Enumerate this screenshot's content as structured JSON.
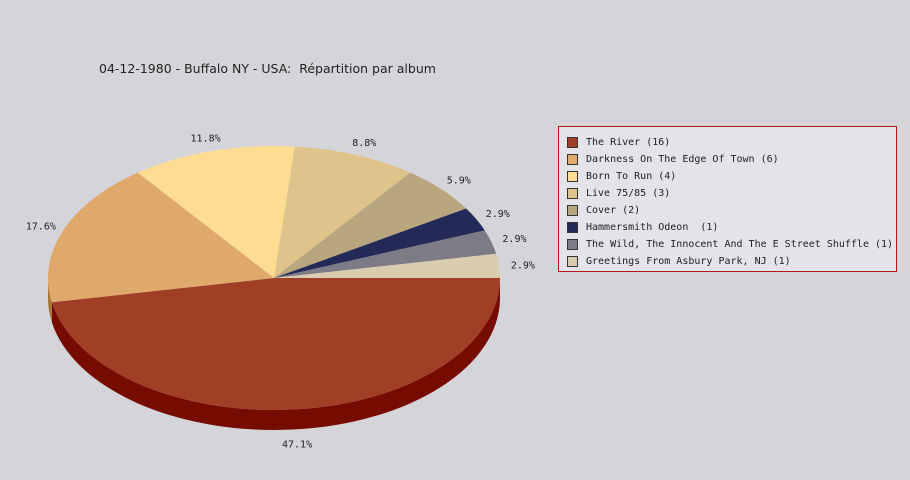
{
  "chart_data": {
    "type": "pie",
    "title": "04-12-1980 - Buffalo NY - USA:  Répartition par album",
    "slices": [
      {
        "label": "The River (16)",
        "value": 16,
        "percent_label": "47.1%",
        "color": "#a03e26",
        "shade": "#760c00"
      },
      {
        "label": "Darkness On The Edge Of Town (6)",
        "value": 6,
        "percent_label": "17.6%",
        "color": "#e0a96c",
        "shade": "#a87432"
      },
      {
        "label": "Born To Run (4)",
        "value": 4,
        "percent_label": "11.8%",
        "color": "#fedd92",
        "shade": "#c4a45a"
      },
      {
        "label": "Live 75/85 (3)",
        "value": 3,
        "percent_label": "8.8%",
        "color": "#dec48a",
        "shade": "#a68c52"
      },
      {
        "label": "Cover (2)",
        "value": 2,
        "percent_label": "5.9%",
        "color": "#b8a67e",
        "shade": "#807046"
      },
      {
        "label": "Hammersmith Odeon  (1)",
        "value": 1,
        "percent_label": "2.9%",
        "color": "#232a58",
        "shade": "#0a0f30"
      },
      {
        "label": "The Wild, The Innocent And The E Street Shuffle (1)",
        "value": 1,
        "percent_label": "2.9%",
        "color": "#7c7b86",
        "shade": "#4c4b56"
      },
      {
        "label": "Greetings From Asbury Park, NJ (1)",
        "value": 1,
        "percent_label": "2.9%",
        "color": "#d9ccaf",
        "shade": "#a59878"
      }
    ],
    "legend_position": "right"
  }
}
